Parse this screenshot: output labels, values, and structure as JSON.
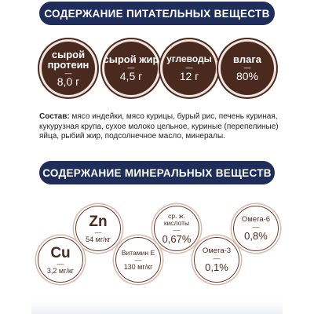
{
  "nutrients": {
    "title": "Содержание питательных веществ",
    "items": [
      {
        "name": "сырой протеин",
        "value": "8,0 г"
      },
      {
        "name": "сырой жир",
        "value": "4,5 г"
      },
      {
        "name": "углеводы",
        "value": "12 г"
      },
      {
        "name": "влага",
        "value": "80%"
      }
    ]
  },
  "composition": {
    "label": "Состав:",
    "text": " мясо индейки, мясо курицы, бурый рис, печень куриная, кукурузная крупа, сухое молоко цельное, куриные (перепелиные) яйца, рыбий жир, подсолнечное масло, минералы."
  },
  "minerals": {
    "title": "Содержание минеральных веществ",
    "items": [
      {
        "name": "Zn",
        "value": "54 мг/кг"
      },
      {
        "name": "ср. ж. кислоты",
        "value": "0,67%"
      },
      {
        "name": "Омега-6",
        "value": "0,8%"
      },
      {
        "name": "Cu",
        "value": "3,2 мг/кг"
      },
      {
        "name": "Витамин Е",
        "value": "130 мг/кг"
      },
      {
        "name": "Омега-3",
        "value": "0,1%"
      }
    ]
  },
  "dash": "—",
  "colors": {
    "banner": "#1f2d5a",
    "nutrient_circle": "#4a2a1f",
    "mineral_ring": "#6b3b2e"
  }
}
